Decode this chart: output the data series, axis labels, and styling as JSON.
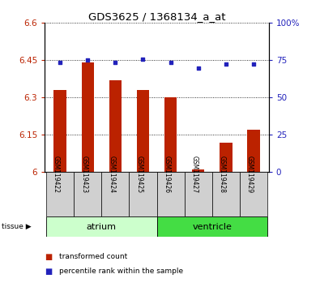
{
  "title": "GDS3625 / 1368134_a_at",
  "samples": [
    "GSM119422",
    "GSM119423",
    "GSM119424",
    "GSM119425",
    "GSM119426",
    "GSM119427",
    "GSM119428",
    "GSM119429"
  ],
  "bar_values": [
    6.33,
    6.44,
    6.37,
    6.33,
    6.3,
    6.01,
    6.12,
    6.17
  ],
  "dot_values_left": [
    6.44,
    6.45,
    6.44,
    6.455,
    6.44,
    6.42,
    6.435,
    6.435
  ],
  "bar_bottom": 6.0,
  "ylim_left": [
    6.0,
    6.6
  ],
  "ylim_right": [
    0,
    100
  ],
  "yticks_left": [
    6.0,
    6.15,
    6.3,
    6.45,
    6.6
  ],
  "ytick_labels_left": [
    "6",
    "6.15",
    "6.3",
    "6.45",
    "6.6"
  ],
  "yticks_right": [
    0,
    25,
    50,
    75,
    100
  ],
  "ytick_labels_right": [
    "0",
    "25",
    "50",
    "75",
    "100%"
  ],
  "bar_color": "#bb2200",
  "dot_color": "#2222bb",
  "tissue_groups": [
    {
      "label": "atrium",
      "start": 0,
      "end": 4,
      "color": "#ccffcc"
    },
    {
      "label": "ventricle",
      "start": 4,
      "end": 8,
      "color": "#44dd44"
    }
  ],
  "legend_bar_label": "transformed count",
  "legend_dot_label": "percentile rank within the sample",
  "tissue_label": "tissue"
}
